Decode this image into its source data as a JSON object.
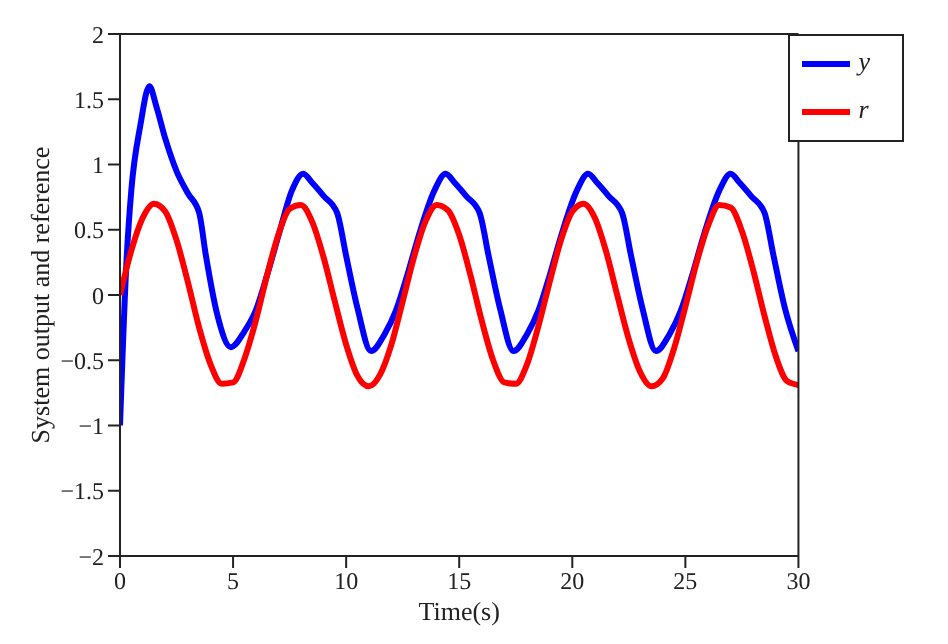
{
  "chart_data": {
    "type": "line",
    "xlabel": "Time(s)",
    "ylabel": "System output and reference",
    "xlim": [
      0,
      30
    ],
    "xticks": [
      0,
      5,
      10,
      15,
      20,
      25,
      30
    ],
    "ylim": [
      -2,
      2
    ],
    "yticks": [
      {
        "value": -2,
        "label": "−2"
      },
      {
        "value": -1.5,
        "label": "−1.5"
      },
      {
        "value": -1,
        "label": "−1"
      },
      {
        "value": -0.5,
        "label": "−0.5"
      },
      0,
      0.5,
      1,
      1.5,
      2
    ],
    "grid": false,
    "legend": "top right",
    "marker": "none",
    "line_style": "solid",
    "series": [
      {
        "name": "y",
        "color": "#0000ff",
        "x": [
          0,
          0.3,
          0.5,
          0.9,
          1.3,
          1.6,
          2,
          2.5,
          3,
          3.5,
          3.8,
          4.3,
          4.9,
          5.5,
          6,
          6.5,
          7,
          7.6,
          8.1,
          8.5,
          9,
          9.6,
          10,
          10.5,
          11.1,
          11.7,
          12.2,
          12.7,
          13.2,
          13.9,
          14.4,
          14.8,
          15.3,
          15.9,
          16.3,
          16.8,
          17.4,
          18,
          18.5,
          19,
          19.5,
          20.2,
          20.7,
          21.1,
          21.6,
          22.2,
          22.6,
          23.1,
          23.7,
          24.3,
          24.8,
          25.3,
          25.8,
          26.5,
          27,
          27.4,
          27.9,
          28.5,
          28.9,
          29.4,
          30
        ],
        "values": [
          -1,
          0.3,
          0.8,
          1.3,
          1.6,
          1.45,
          1.2,
          0.95,
          0.78,
          0.63,
          0.3,
          -0.15,
          -0.4,
          -0.28,
          -0.12,
          0.15,
          0.45,
          0.8,
          0.93,
          0.86,
          0.76,
          0.63,
          0.3,
          -0.1,
          -0.43,
          -0.3,
          -0.12,
          0.15,
          0.45,
          0.8,
          0.93,
          0.86,
          0.76,
          0.63,
          0.3,
          -0.1,
          -0.43,
          -0.3,
          -0.12,
          0.15,
          0.45,
          0.8,
          0.93,
          0.86,
          0.76,
          0.63,
          0.3,
          -0.1,
          -0.43,
          -0.3,
          -0.12,
          0.15,
          0.45,
          0.8,
          0.93,
          0.86,
          0.76,
          0.63,
          0.3,
          -0.1,
          -0.43
        ]
      },
      {
        "name": "r",
        "color": "#ff0000",
        "x": [
          0,
          0.5,
          1,
          1.5,
          2,
          2.5,
          3,
          3.5,
          4,
          4.5,
          5,
          5.5,
          6,
          6.5,
          7,
          7.5,
          8,
          8.5,
          9,
          9.5,
          10,
          10.5,
          11,
          11.5,
          12,
          12.5,
          13,
          13.5,
          14,
          14.5,
          15,
          15.5,
          16,
          16.5,
          17,
          17.5,
          18,
          18.5,
          19,
          19.5,
          20,
          20.5,
          21,
          21.5,
          22,
          22.5,
          23,
          23.5,
          24,
          24.5,
          25,
          25.5,
          26,
          26.5,
          27,
          27.5,
          28,
          28.5,
          29,
          29.5,
          30
        ],
        "values": [
          0,
          0.34,
          0.59,
          0.7,
          0.64,
          0.42,
          0.1,
          -0.25,
          -0.53,
          -0.68,
          -0.67,
          -0.49,
          -0.2,
          0.15,
          0.46,
          0.66,
          0.69,
          0.56,
          0.29,
          -0.05,
          -0.38,
          -0.62,
          -0.7,
          -0.61,
          -0.38,
          -0.05,
          0.29,
          0.56,
          0.69,
          0.65,
          0.46,
          0.15,
          -0.2,
          -0.5,
          -0.67,
          -0.68,
          -0.53,
          -0.24,
          0.1,
          0.42,
          0.64,
          0.7,
          0.59,
          0.33,
          -0.01,
          -0.34,
          -0.59,
          -0.7,
          -0.64,
          -0.41,
          -0.09,
          0.25,
          0.53,
          0.69,
          0.67,
          0.49,
          0.19,
          -0.16,
          -0.47,
          -0.66,
          -0.69
        ]
      }
    ]
  }
}
